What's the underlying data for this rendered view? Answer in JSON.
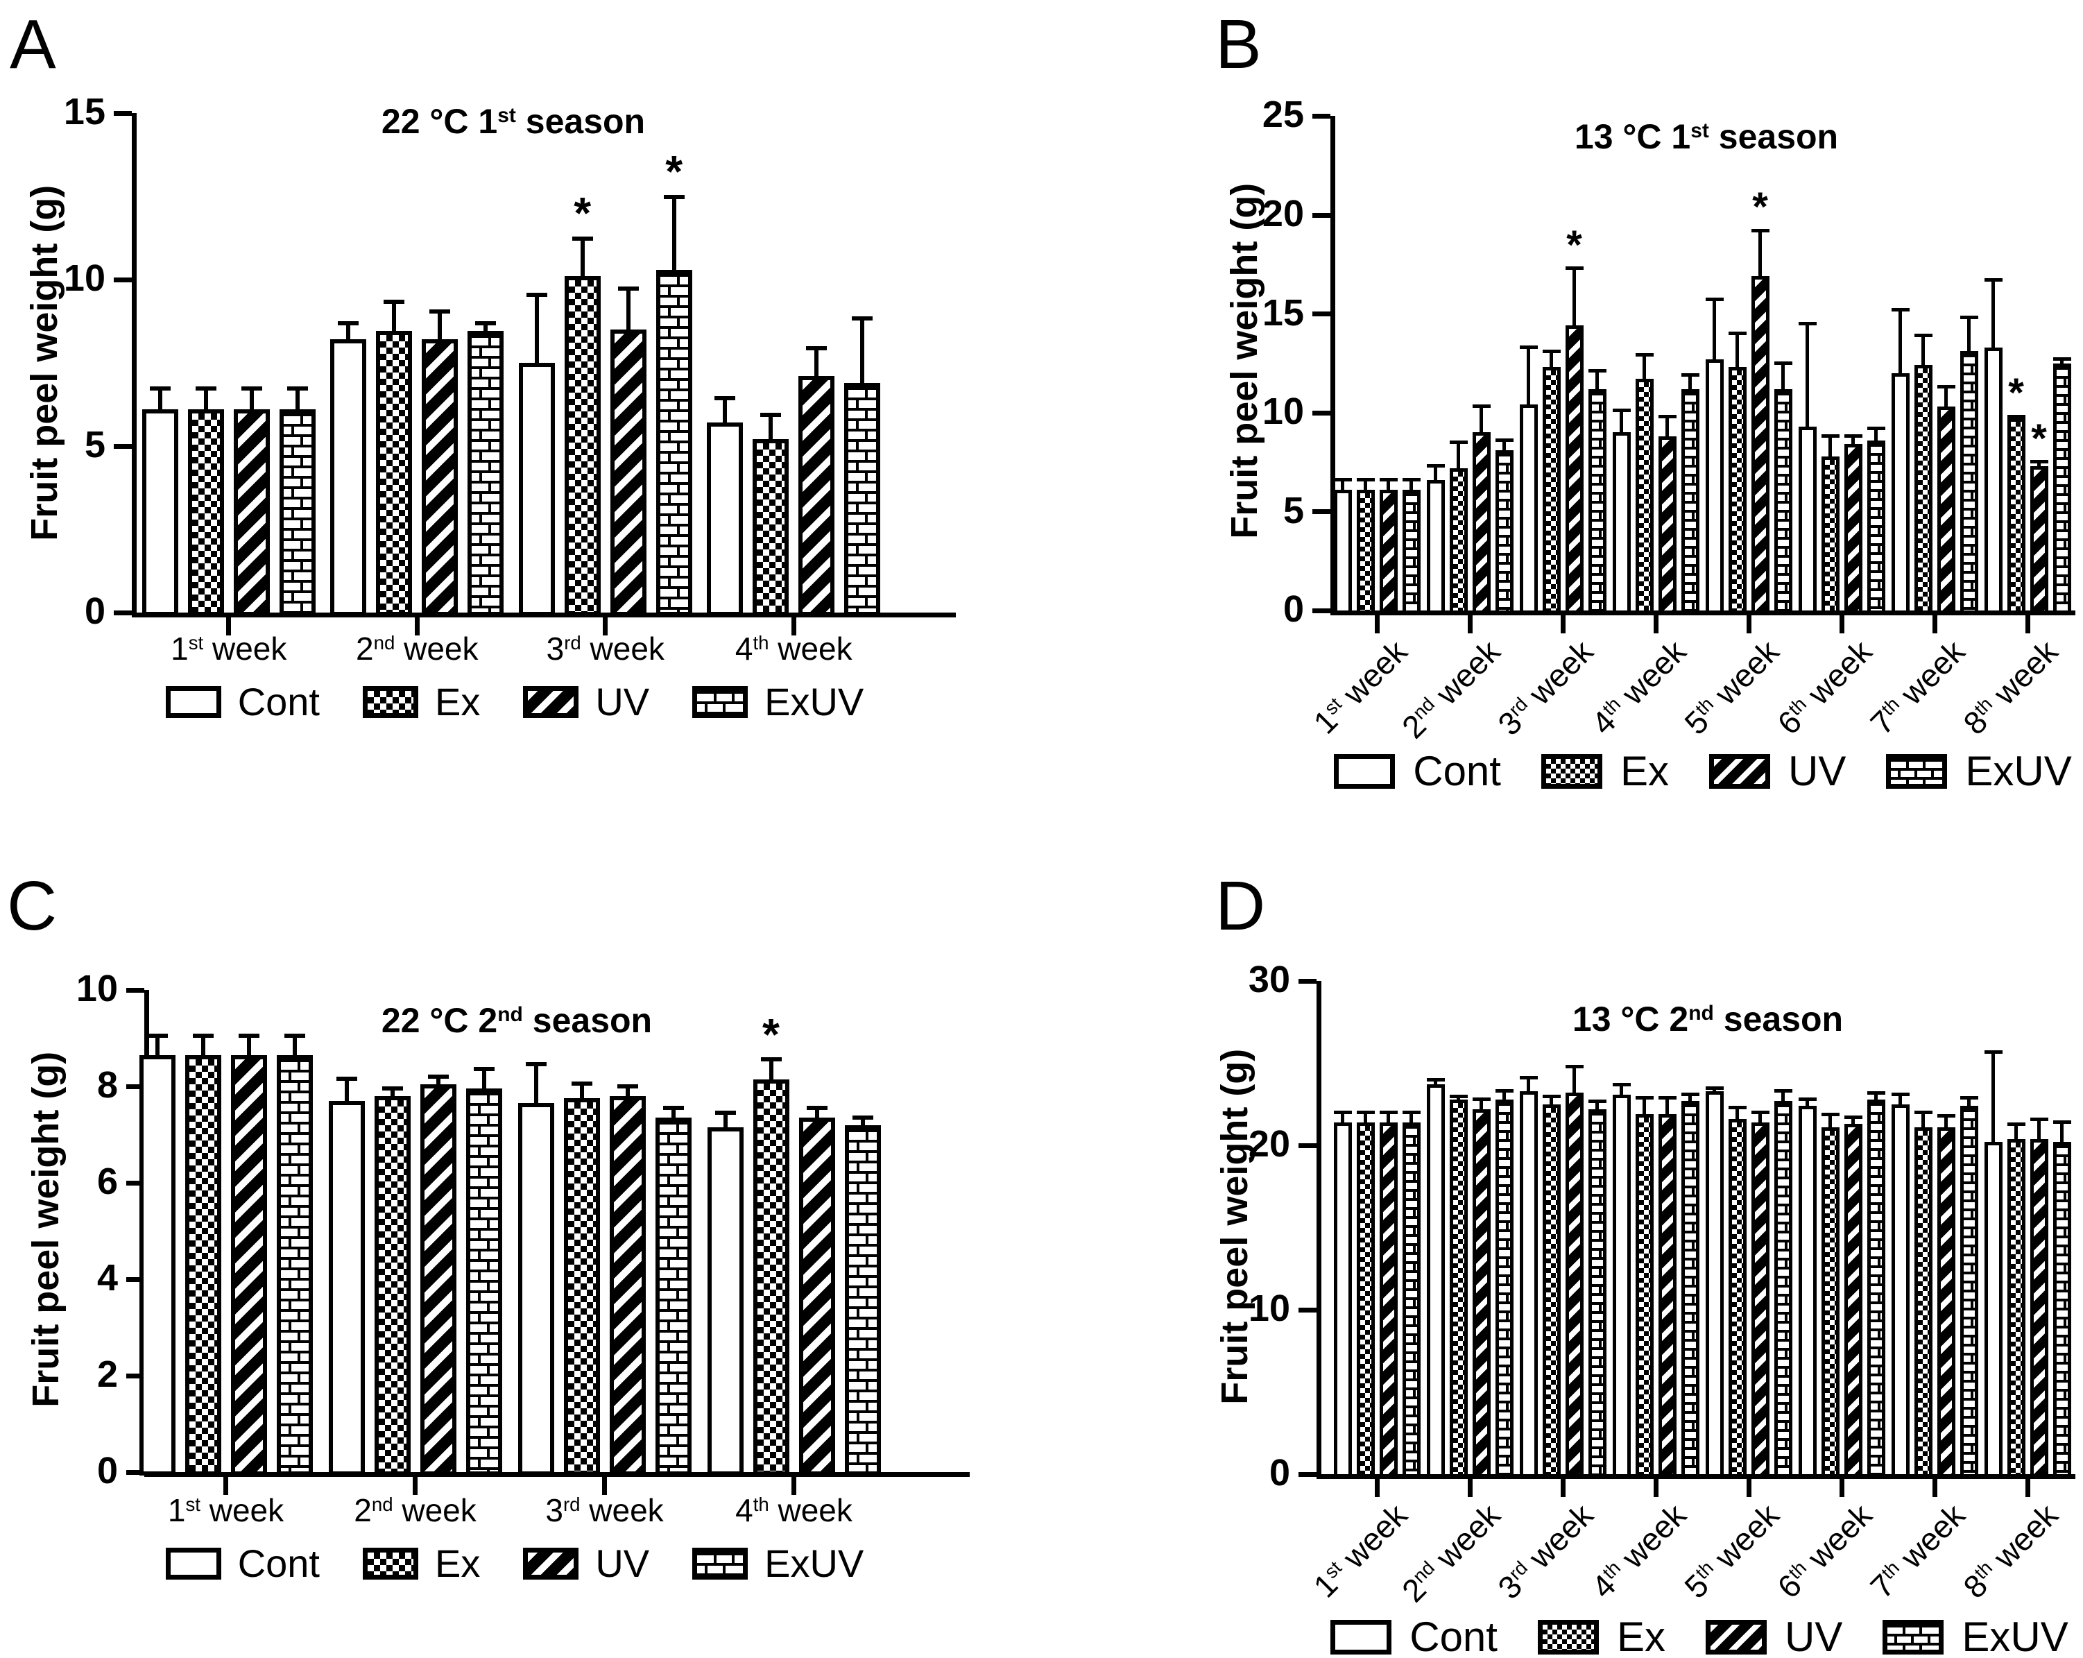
{
  "meta": {
    "colors": {
      "foreground": "#000000",
      "background": "#ffffff"
    },
    "figure_description": "Four-panel bar figure of fruit peel weight by storage week and treatment"
  },
  "legend_labels": [
    "Cont",
    "Ex",
    "UV",
    "ExUV"
  ],
  "chart_data": [
    {
      "panel_label": "A",
      "type": "bar",
      "title": "22 °C 1st season",
      "ylabel": "Fruit peel weight (g)",
      "ylim": [
        0,
        15
      ],
      "yticks": [
        0,
        5,
        10,
        15
      ],
      "grid": false,
      "legend_position": "bottom",
      "x_tick_rotation": 0,
      "categories": [
        "1st week",
        "2nd week",
        "3rd week",
        "4th week"
      ],
      "series": [
        {
          "name": "Cont",
          "pattern": "plain",
          "values": [
            6.1,
            8.2,
            7.5,
            5.7
          ],
          "sd": [
            0.7,
            0.55,
            2.1,
            0.8
          ]
        },
        {
          "name": "Ex",
          "pattern": "checker",
          "values": [
            6.1,
            8.45,
            10.1,
            5.2
          ],
          "sd": [
            0.7,
            0.95,
            1.2,
            0.8
          ]
        },
        {
          "name": "UV",
          "pattern": "diagonal",
          "values": [
            6.1,
            8.2,
            8.5,
            7.1
          ],
          "sd": [
            0.7,
            0.9,
            1.3,
            0.9
          ]
        },
        {
          "name": "ExUV",
          "pattern": "brick",
          "values": [
            6.1,
            8.45,
            10.3,
            6.9
          ],
          "sd": [
            0.7,
            0.3,
            2.25,
            2.0
          ]
        }
      ],
      "significance": [
        {
          "category": "3rd week",
          "series": "Ex",
          "marker": "*"
        },
        {
          "category": "3rd week",
          "series": "ExUV",
          "marker": "*"
        }
      ]
    },
    {
      "panel_label": "B",
      "type": "bar",
      "title": "13 °C 1st season",
      "ylabel": "Fruit peel weight (g)",
      "ylim": [
        0,
        25
      ],
      "yticks": [
        0,
        5,
        10,
        15,
        20,
        25
      ],
      "grid": false,
      "legend_position": "bottom",
      "x_tick_rotation": -45,
      "categories": [
        "1st week",
        "2nd week",
        "3rd week",
        "4th week",
        "5th week",
        "6th week",
        "7th week",
        "8th week"
      ],
      "series": [
        {
          "name": "Cont",
          "pattern": "plain",
          "values": [
            6.1,
            6.6,
            10.4,
            9.0,
            12.7,
            9.3,
            12.0,
            13.3
          ],
          "sd": [
            0.6,
            0.8,
            3.0,
            1.2,
            3.1,
            5.3,
            3.3,
            3.5
          ]
        },
        {
          "name": "Ex",
          "pattern": "checker",
          "values": [
            6.1,
            7.2,
            12.3,
            11.7,
            12.3,
            7.8,
            12.4,
            9.7
          ],
          "sd": [
            0.6,
            1.4,
            0.9,
            1.3,
            1.8,
            1.1,
            1.6,
            0.2
          ]
        },
        {
          "name": "UV",
          "pattern": "diagonal",
          "values": [
            6.1,
            9.0,
            14.4,
            8.8,
            16.9,
            8.4,
            10.3,
            7.3
          ],
          "sd": [
            0.6,
            1.4,
            3.0,
            1.1,
            2.4,
            0.5,
            1.1,
            0.3
          ]
        },
        {
          "name": "ExUV",
          "pattern": "brick",
          "values": [
            6.1,
            8.1,
            11.2,
            11.2,
            11.2,
            8.6,
            13.1,
            12.5
          ],
          "sd": [
            0.6,
            0.6,
            1.0,
            0.8,
            1.4,
            0.7,
            1.8,
            0.3
          ]
        }
      ],
      "significance": [
        {
          "category": "3rd week",
          "series": "UV",
          "marker": "*"
        },
        {
          "category": "5th week",
          "series": "UV",
          "marker": "*"
        },
        {
          "category": "8th week",
          "series": "Ex",
          "marker": "*"
        },
        {
          "category": "8th week",
          "series": "UV",
          "marker": "*"
        }
      ]
    },
    {
      "panel_label": "C",
      "type": "bar",
      "title": "22 °C 2nd season",
      "ylabel": "Fruit peel weight (g)",
      "ylim": [
        0,
        10
      ],
      "yticks": [
        0,
        2,
        4,
        6,
        8,
        10
      ],
      "grid": false,
      "legend_position": "bottom",
      "x_tick_rotation": 0,
      "categories": [
        "1st week",
        "2nd week",
        "3rd week",
        "4th week"
      ],
      "series": [
        {
          "name": "Cont",
          "pattern": "plain",
          "values": [
            8.65,
            7.7,
            7.65,
            7.15
          ],
          "sd": [
            0.45,
            0.5,
            0.85,
            0.35
          ]
        },
        {
          "name": "Ex",
          "pattern": "checker",
          "values": [
            8.65,
            7.8,
            7.75,
            8.15
          ],
          "sd": [
            0.45,
            0.2,
            0.35,
            0.45
          ]
        },
        {
          "name": "UV",
          "pattern": "diagonal",
          "values": [
            8.65,
            8.05,
            7.8,
            7.35
          ],
          "sd": [
            0.45,
            0.2,
            0.25,
            0.25
          ]
        },
        {
          "name": "ExUV",
          "pattern": "brick",
          "values": [
            8.65,
            7.95,
            7.35,
            7.2
          ],
          "sd": [
            0.45,
            0.45,
            0.25,
            0.2
          ]
        }
      ],
      "significance": [
        {
          "category": "4th week",
          "series": "Ex",
          "marker": "*"
        }
      ]
    },
    {
      "panel_label": "D",
      "type": "bar",
      "title": "13 °C 2nd season",
      "ylabel": "Fruit peel weight (g)",
      "ylim": [
        0,
        30
      ],
      "yticks": [
        0,
        10,
        20,
        30
      ],
      "grid": false,
      "legend_position": "bottom",
      "x_tick_rotation": -45,
      "categories": [
        "1st week",
        "2nd week",
        "3rd week",
        "4th week",
        "5th week",
        "6th week",
        "7th week",
        "8th week"
      ],
      "series": [
        {
          "name": "Cont",
          "pattern": "plain",
          "values": [
            21.4,
            23.7,
            23.3,
            23.1,
            23.3,
            22.4,
            22.5,
            20.2
          ],
          "sd": [
            0.7,
            0.4,
            0.9,
            0.7,
            0.3,
            0.5,
            0.7,
            5.6
          ]
        },
        {
          "name": "Ex",
          "pattern": "checker",
          "values": [
            21.4,
            22.8,
            22.5,
            21.9,
            21.6,
            21.1,
            21.1,
            20.4
          ],
          "sd": [
            0.7,
            0.3,
            0.6,
            1.1,
            0.8,
            0.9,
            1.0,
            1.0
          ]
        },
        {
          "name": "UV",
          "pattern": "diagonal",
          "values": [
            21.4,
            22.2,
            23.2,
            21.9,
            21.4,
            21.3,
            21.1,
            20.4
          ],
          "sd": [
            0.7,
            0.7,
            1.7,
            1.1,
            0.7,
            0.5,
            0.8,
            1.3
          ]
        },
        {
          "name": "ExUV",
          "pattern": "brick",
          "values": [
            21.4,
            22.8,
            22.2,
            22.7,
            22.7,
            22.8,
            22.4,
            20.2
          ],
          "sd": [
            0.7,
            0.6,
            0.6,
            0.5,
            0.7,
            0.5,
            0.6,
            1.3
          ]
        }
      ],
      "significance": []
    }
  ]
}
